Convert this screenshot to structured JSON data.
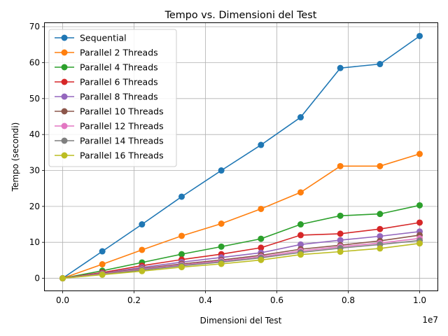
{
  "chart_data": {
    "type": "line",
    "title": "Tempo vs. Dimensioni del Test",
    "xlabel": "Dimensioni del Test",
    "ylabel": "Tempo (secondi)",
    "x_scale_label": "1e7",
    "x_scale": 10000000,
    "xlim": [
      -0.05,
      1.05
    ],
    "ylim": [
      -3.4,
      71
    ],
    "xticks": [
      0.0,
      0.2,
      0.4,
      0.6,
      0.8,
      1.0
    ],
    "xtick_labels": [
      "0.0",
      "0.2",
      "0.4",
      "0.6",
      "0.8",
      "1.0"
    ],
    "yticks": [
      0,
      10,
      20,
      30,
      40,
      50,
      60,
      70
    ],
    "ytick_labels": [
      "0",
      "10",
      "20",
      "30",
      "40",
      "50",
      "60",
      "70"
    ],
    "grid": true,
    "legend_position": "top-left",
    "x": [
      0,
      1111111,
      2222222,
      3333333,
      4444444,
      5555555,
      6666666,
      7777777,
      8888888,
      10000000
    ],
    "series": [
      {
        "name": "Sequential",
        "color": "#1f77b4",
        "values": [
          0,
          7.5,
          15.0,
          22.7,
          30.0,
          37.1,
          44.8,
          58.5,
          59.6,
          67.4
        ]
      },
      {
        "name": "Parallel 2 Threads",
        "color": "#ff7f0e",
        "values": [
          0,
          3.9,
          7.9,
          11.8,
          15.2,
          19.3,
          23.9,
          31.2,
          31.2,
          34.6
        ]
      },
      {
        "name": "Parallel 4 Threads",
        "color": "#2ca02c",
        "values": [
          0,
          2.1,
          4.4,
          6.7,
          8.8,
          11.0,
          15.0,
          17.4,
          17.9,
          20.3
        ]
      },
      {
        "name": "Parallel 6 Threads",
        "color": "#d62728",
        "values": [
          0,
          1.6,
          3.5,
          5.2,
          6.7,
          8.5,
          12.0,
          12.4,
          13.7,
          15.5
        ]
      },
      {
        "name": "Parallel 8 Threads",
        "color": "#9467bd",
        "values": [
          0,
          1.4,
          3.0,
          4.5,
          5.8,
          7.1,
          9.4,
          10.6,
          11.7,
          13.0
        ]
      },
      {
        "name": "Parallel 10 Threads",
        "color": "#8c564b",
        "values": [
          0,
          1.3,
          2.7,
          4.0,
          5.1,
          6.4,
          8.1,
          9.2,
          10.4,
          12.0
        ]
      },
      {
        "name": "Parallel 12 Threads",
        "color": "#e377c2",
        "values": [
          0,
          1.2,
          2.5,
          3.7,
          4.8,
          6.0,
          7.6,
          8.8,
          9.8,
          11.1
        ]
      },
      {
        "name": "Parallel 14 Threads",
        "color": "#7f7f7f",
        "values": [
          0,
          1.1,
          2.3,
          3.5,
          4.5,
          5.7,
          7.2,
          8.4,
          9.4,
          10.5
        ]
      },
      {
        "name": "Parallel 16 Threads",
        "color": "#bcbd22",
        "values": [
          0,
          1.0,
          2.0,
          3.1,
          4.0,
          5.1,
          6.6,
          7.4,
          8.3,
          9.7
        ]
      }
    ]
  }
}
